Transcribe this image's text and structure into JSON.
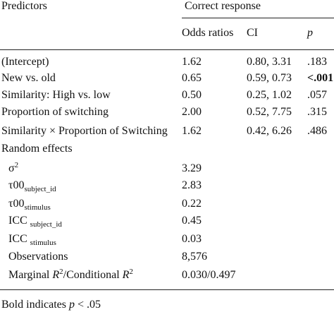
{
  "table": {
    "header": {
      "predictors": "Predictors",
      "group": "Correct response",
      "columns": [
        "Odds ratios",
        "CI",
        "p"
      ]
    },
    "rows": [
      {
        "label": [
          {
            "t": "(Intercept)"
          }
        ],
        "or": "1.62",
        "ci": "0.80, 3.31",
        "p": ".183"
      },
      {
        "label": [
          {
            "t": "New vs. old"
          }
        ],
        "or": "0.65",
        "ci": "0.59, 0.73",
        "p": "<.001",
        "p_bold": true
      },
      {
        "label": [
          {
            "t": "Similarity: High vs. low"
          }
        ],
        "or": "0.50",
        "ci": "0.25, 1.02",
        "p": ".057"
      },
      {
        "label": [
          {
            "t": "Proportion of switching"
          }
        ],
        "or": "2.00",
        "ci": "0.52, 7.75",
        "p": ".315"
      },
      {
        "label": [
          {
            "t": "Similarity × Proportion of Switching"
          }
        ],
        "or": "1.62",
        "ci": "0.42, 6.26",
        "p": ".486"
      },
      {
        "label": [
          {
            "t": "Random effects"
          }
        ]
      },
      {
        "label": [
          {
            "t": "σ"
          },
          {
            "sup": "2"
          }
        ],
        "indent": true,
        "or": "3.29"
      },
      {
        "label": [
          {
            "t": "τ"
          },
          {
            "t": "00"
          },
          {
            "sub": "subject_id"
          }
        ],
        "indent": true,
        "or": "2.83"
      },
      {
        "label": [
          {
            "t": "τ"
          },
          {
            "t": "00"
          },
          {
            "sub": "stimulus"
          }
        ],
        "indent": true,
        "or": "0.22"
      },
      {
        "label": [
          {
            "t": "ICC "
          },
          {
            "sub": "subject_id"
          }
        ],
        "indent": true,
        "or": "0.45"
      },
      {
        "label": [
          {
            "t": "ICC "
          },
          {
            "sub": "stimulus"
          }
        ],
        "indent": true,
        "or": "0.03"
      },
      {
        "label": [
          {
            "t": "Observations"
          }
        ],
        "indent": true,
        "or": "8,576"
      },
      {
        "label": [
          {
            "t": "Marginal "
          },
          {
            "i": "R"
          },
          {
            "sup": "2"
          },
          {
            "t": "/Conditional "
          },
          {
            "i": "R"
          },
          {
            "sup": "2"
          }
        ],
        "indent": true,
        "or": "0.030/0.497"
      }
    ],
    "footer": [
      {
        "t": "Bold indicates "
      },
      {
        "i": "p"
      },
      {
        "t": " < .05"
      }
    ]
  }
}
